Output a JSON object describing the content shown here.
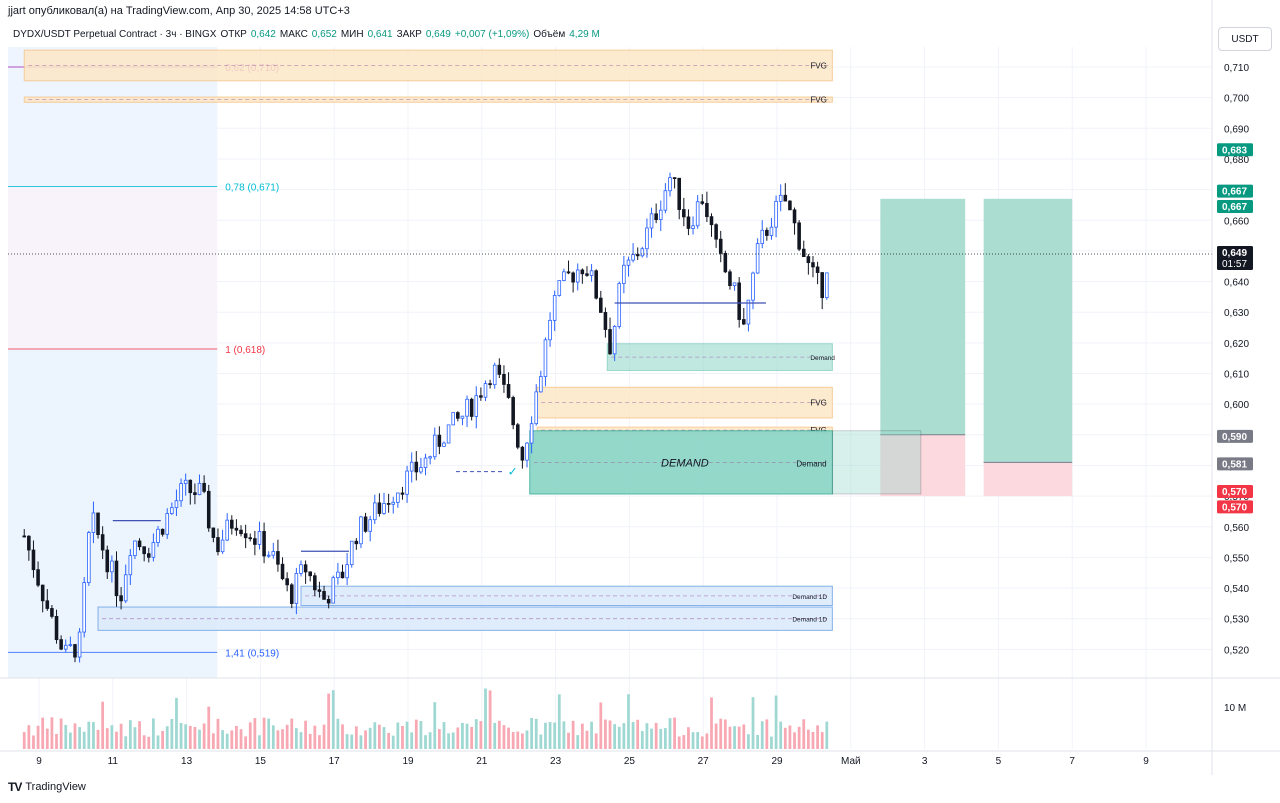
{
  "header": {
    "caption": "jjart опубликовал(а) на TradingView.com, Апр 30, 2025 14:58 UTC+3",
    "symbol": "DYDX/USDT Perpetual Contract · 3ч · BINGX",
    "open_label": "ОТКР",
    "open_value": "0,642",
    "high_label": "МАКС",
    "high_value": "0,652",
    "low_label": "МИН",
    "low_value": "0,641",
    "close_label": "ЗАКР",
    "close_value": "0,649",
    "change_value": "+0,007 (+1,09%)",
    "volume_label": "Объём",
    "volume_value": "4,29 M",
    "currency": "USDT"
  },
  "footer": {
    "brand": "TradingView",
    "logo": "TV"
  },
  "colors": {
    "up": "#089981",
    "up_candle_body": "#2962ff",
    "down": "#131722",
    "vol_up": "#9fd8d3",
    "vol_down": "#f7a8b3",
    "fvg_fill": "#fde8c7",
    "fvg_border": "#f5c58a",
    "demand_fill": "#8fd6c8",
    "demand_border": "#41b59f",
    "demand1d_fill": "#dcebfb",
    "demand1d_border": "#77a8e6",
    "target_fill": "#a6dccf",
    "stop_fill": "#fcd9de"
  },
  "chart_data": {
    "type": "candlestick",
    "timeframe": "3ч",
    "ylim": [
      0.513,
      0.72
    ],
    "y_ticks": [
      "0,710",
      "0,700",
      "0,690",
      "0,680",
      "0,670",
      "0,660",
      "0,650",
      "0,640",
      "0,630",
      "0,620",
      "0,610",
      "0,600",
      "0,590",
      "0,580",
      "0,570",
      "0,560",
      "0,550",
      "0,540",
      "0,530",
      "0,520"
    ],
    "y_tick_values": [
      0.71,
      0.7,
      0.69,
      0.68,
      0.67,
      0.66,
      0.65,
      0.64,
      0.63,
      0.62,
      0.61,
      0.6,
      0.59,
      0.58,
      0.57,
      0.56,
      0.55,
      0.54,
      0.53,
      0.52
    ],
    "x_ticks": [
      "9",
      "11",
      "13",
      "15",
      "17",
      "19",
      "21",
      "23",
      "25",
      "27",
      "29",
      "Май",
      "3",
      "5",
      "7",
      "9"
    ],
    "x_tick_days": [
      9,
      11,
      13,
      15,
      17,
      19,
      21,
      23,
      25,
      27,
      29,
      31,
      33,
      35,
      37,
      39
    ],
    "x_start_day": 8.6,
    "x_end_day": 39.7,
    "volume_label": "10 M",
    "candles_per_day": 8,
    "close_path": [
      {
        "day": 8.6,
        "price": 0.557
      },
      {
        "day": 9.3,
        "price": 0.531
      },
      {
        "day": 9.7,
        "price": 0.518
      },
      {
        "day": 10.1,
        "price": 0.522
      },
      {
        "day": 10.4,
        "price": 0.563
      },
      {
        "day": 10.8,
        "price": 0.551
      },
      {
        "day": 11.2,
        "price": 0.537
      },
      {
        "day": 11.5,
        "price": 0.556
      },
      {
        "day": 12.0,
        "price": 0.553
      },
      {
        "day": 12.4,
        "price": 0.562
      },
      {
        "day": 12.9,
        "price": 0.572
      },
      {
        "day": 13.4,
        "price": 0.571
      },
      {
        "day": 13.8,
        "price": 0.553
      },
      {
        "day": 14.3,
        "price": 0.563
      },
      {
        "day": 14.8,
        "price": 0.557
      },
      {
        "day": 15.3,
        "price": 0.551
      },
      {
        "day": 15.8,
        "price": 0.537
      },
      {
        "day": 16.2,
        "price": 0.547
      },
      {
        "day": 16.7,
        "price": 0.536
      },
      {
        "day": 17.2,
        "price": 0.544
      },
      {
        "day": 17.6,
        "price": 0.558
      },
      {
        "day": 18.2,
        "price": 0.566
      },
      {
        "day": 18.9,
        "price": 0.575
      },
      {
        "day": 19.5,
        "price": 0.582
      },
      {
        "day": 20.0,
        "price": 0.591
      },
      {
        "day": 20.4,
        "price": 0.595
      },
      {
        "day": 20.8,
        "price": 0.601
      },
      {
        "day": 21.3,
        "price": 0.612
      },
      {
        "day": 21.7,
        "price": 0.601
      },
      {
        "day": 22.1,
        "price": 0.583
      },
      {
        "day": 22.6,
        "price": 0.611
      },
      {
        "day": 22.9,
        "price": 0.632
      },
      {
        "day": 23.3,
        "price": 0.641
      },
      {
        "day": 23.8,
        "price": 0.646
      },
      {
        "day": 24.2,
        "price": 0.633
      },
      {
        "day": 24.5,
        "price": 0.618
      },
      {
        "day": 24.8,
        "price": 0.642
      },
      {
        "day": 25.3,
        "price": 0.651
      },
      {
        "day": 25.7,
        "price": 0.662
      },
      {
        "day": 26.1,
        "price": 0.674
      },
      {
        "day": 26.6,
        "price": 0.659
      },
      {
        "day": 27.0,
        "price": 0.668
      },
      {
        "day": 27.4,
        "price": 0.648
      },
      {
        "day": 27.8,
        "price": 0.638
      },
      {
        "day": 28.1,
        "price": 0.625
      },
      {
        "day": 28.5,
        "price": 0.651
      },
      {
        "day": 28.9,
        "price": 0.662
      },
      {
        "day": 29.2,
        "price": 0.667
      },
      {
        "day": 29.6,
        "price": 0.654
      },
      {
        "day": 29.9,
        "price": 0.643
      },
      {
        "day": 30.2,
        "price": 0.637
      },
      {
        "day": 30.4,
        "price": 0.649
      }
    ],
    "price_badges": [
      {
        "label": "0,683",
        "price": 0.683,
        "color": "#089981"
      },
      {
        "label": "0,667",
        "price": 0.6695,
        "color": "#089981"
      },
      {
        "label": "0,667",
        "price": 0.6645,
        "color": "#089981"
      },
      {
        "label": "0,649",
        "sub": "01:57",
        "price": 0.649,
        "color": "#131722"
      },
      {
        "label": "0,590",
        "price": 0.5895,
        "color": "#787b86"
      },
      {
        "label": "0,581",
        "price": 0.5805,
        "color": "#787b86"
      },
      {
        "label": "0,570",
        "price": 0.5715,
        "color": "#f23645"
      },
      {
        "label": "0,570",
        "price": 0.5665,
        "color": "#f23645"
      }
    ],
    "fib_levels": [
      {
        "label": "0,62 (0,710)",
        "price": 0.71,
        "color": "#9c27b0"
      },
      {
        "label": "0,78 (0,671)",
        "price": 0.671,
        "color": "#00bcd4"
      },
      {
        "label": "1 (0,618)",
        "price": 0.618,
        "color": "#f23645"
      },
      {
        "label": "1,41 (0,519)",
        "price": 0.519,
        "color": "#2962ff"
      }
    ],
    "zones": [
      {
        "type": "fvg",
        "label": "FVG",
        "top": 0.7155,
        "bottom": 0.7055,
        "start_day": 8.6,
        "end_day": 30.5
      },
      {
        "type": "fvg",
        "label": "FVG",
        "top": 0.7002,
        "bottom": 0.6985,
        "start_day": 8.6,
        "end_day": 30.5
      },
      {
        "type": "fvg",
        "label": "FVG",
        "top": 0.6055,
        "bottom": 0.5955,
        "start_day": 22.5,
        "end_day": 30.5
      },
      {
        "type": "fvg",
        "label": "FVG",
        "top": 0.5925,
        "bottom": 0.5905,
        "start_day": 22.5,
        "end_day": 30.5
      },
      {
        "type": "demand",
        "label": "Demand",
        "top": 0.6197,
        "bottom": 0.611,
        "start_day": 24.4,
        "end_day": 30.5
      },
      {
        "type": "demand_main",
        "label": "DEMAND",
        "sub_label": "Demand",
        "top": 0.5913,
        "bottom": 0.5707,
        "start_day": 22.3,
        "end_day": 30.5
      },
      {
        "type": "demand1d",
        "label": "Demand 1D",
        "top": 0.5406,
        "bottom": 0.5343,
        "start_day": 16.1,
        "end_day": 30.5
      },
      {
        "type": "demand1d",
        "label": "Demand 1D",
        "top": 0.5338,
        "bottom": 0.5262,
        "start_day": 10.6,
        "end_day": 30.5
      }
    ],
    "positions": [
      {
        "entry": 0.59,
        "target": 0.667,
        "stop": 0.57,
        "start_day": 31.8,
        "end_day": 34.1
      },
      {
        "entry": 0.581,
        "target": 0.667,
        "stop": 0.57,
        "start_day": 34.6,
        "end_day": 37.0
      }
    ],
    "last_price": 0.649
  }
}
